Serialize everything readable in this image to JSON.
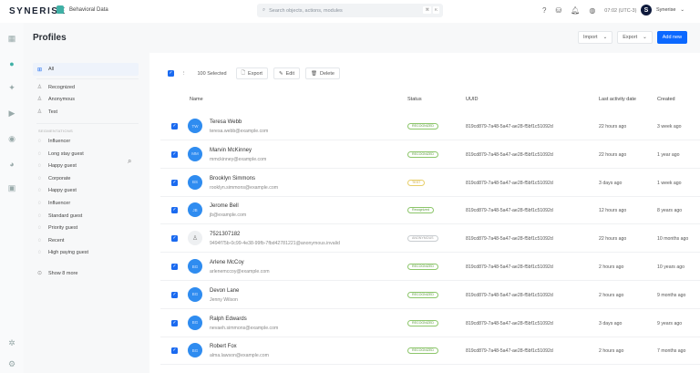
{
  "topbar": {
    "logo": "SYNERISE",
    "module": "Behavioral Data",
    "search_placeholder": "Search objects, actions, modules",
    "shortcut": [
      "⌘",
      "K"
    ],
    "time": "07:02 (UTC-3)",
    "user_initial": "S",
    "user": "Synerise"
  },
  "page": {
    "title": "Profiles",
    "import_label": "Import",
    "export_label": "Export",
    "add_label": "Add new"
  },
  "filters": {
    "items": [
      {
        "label": "All",
        "active": true
      },
      {
        "label": "Recognized"
      },
      {
        "label": "Anonymous"
      },
      {
        "label": "Test"
      }
    ],
    "segment_header": "SEGMENTATIONS",
    "segments": [
      "Influencer",
      "Long stay guest",
      "Happy guest",
      "Corporate",
      "Happy guest",
      "Influencer",
      "Standard guest",
      "Priority guest",
      "Recent",
      "High paying guest"
    ],
    "show_more": "Show 8 more"
  },
  "toolbar": {
    "selected": "100  Selected",
    "export": "Export",
    "edit": "Edit",
    "delete": "Delete"
  },
  "table": {
    "columns": [
      "Name",
      "Status",
      "UUID",
      "Last activity date",
      "Created"
    ],
    "rows": [
      {
        "initials": "TW",
        "name": "Teresa Webb",
        "sub": "teresa.webb@example.com",
        "status": "RECOGNIZED",
        "type": "recognized",
        "uuid": "819cd879-7a48-5a47-ae28-f5bf1c51092d",
        "last": "22 hours ago",
        "created": "3 week ago"
      },
      {
        "initials": "MM",
        "name": "Marvin McKinney",
        "sub": "mmckinney@example.com",
        "status": "RECOGNIZED",
        "type": "recognized",
        "uuid": "819cd879-7a48-5a47-ae28-f5bf1c51092d",
        "last": "22 hours ago",
        "created": "1 year ago"
      },
      {
        "initials": "BS",
        "name": "Brooklyn Simmons",
        "sub": "rooklyn.simmons@example.com",
        "status": "TEST",
        "type": "test",
        "uuid": "819cd879-7a48-5a47-ae28-f5bf1c51092d",
        "last": "3 days ago",
        "created": "1 week ago"
      },
      {
        "initials": "JB",
        "name": "Jerome Bell",
        "sub": "jb@example.com",
        "status": "Recognized",
        "type": "recognized",
        "uuid": "819cd879-7a48-5a47-ae28-f5bf1c51092d",
        "last": "12 hours ago",
        "created": "8 years ago"
      },
      {
        "initials": "",
        "name": "7521307182",
        "sub": "9494f75b-0c99-4e38-99fb-7fbd42781221@anonymous.invalid",
        "status": "ANONYMOUS",
        "type": "anonymous",
        "uuid": "819cd879-7a48-5a47-ae28-f5bf1c51092d",
        "last": "22 hours ago",
        "created": "10 months ago"
      },
      {
        "initials": "BG",
        "name": "Arlene McCoy",
        "sub": "arlenemccoy@example.com",
        "status": "RECOGNIZED",
        "type": "recognized",
        "uuid": "819cd879-7a48-5a47-ae28-f5bf1c51092d",
        "last": "2 hours ago",
        "created": "10 years ago"
      },
      {
        "initials": "BG",
        "name": "Devon Lane",
        "sub": "Jenny Wilson",
        "status": "RECOGNIZED",
        "type": "recognized",
        "uuid": "819cd879-7a48-5a47-ae28-f5bf1c51092d",
        "last": "2 hours ago",
        "created": "9 months ago"
      },
      {
        "initials": "BG",
        "name": "Ralph Edwards",
        "sub": "nevaeh.simmons@example.com",
        "status": "RECOGNIZED",
        "type": "recognized",
        "uuid": "819cd879-7a48-5a47-ae28-f5bf1c51092d",
        "last": "3 days ago",
        "created": "9 years ago"
      },
      {
        "initials": "BG",
        "name": "Robert Fox",
        "sub": "alma.lawson@example.com",
        "status": "RECOGNIZED",
        "type": "recognized",
        "uuid": "819cd879-7a48-5a47-ae28-f5bf1c51092d",
        "last": "2 hours ago",
        "created": "7 months ago"
      }
    ]
  },
  "colors": {
    "accent": "#0b68ff",
    "recognized": "#8cc66a",
    "test": "#e8cf6a",
    "anonymous": "#c8ccd0"
  }
}
